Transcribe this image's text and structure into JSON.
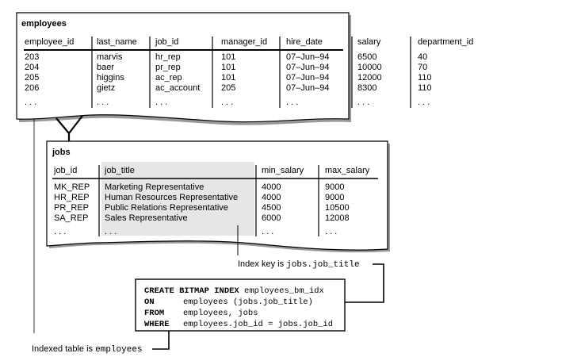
{
  "employees": {
    "title": "employees",
    "columns": [
      "employee_id",
      "last_name",
      "job_id",
      "manager_id",
      "hire_date",
      "salary",
      "department_id"
    ],
    "rows": [
      [
        "203",
        "marvis",
        "hr_rep",
        "101",
        "07–Jun–94",
        "6500",
        "40"
      ],
      [
        "204",
        "baer",
        "pr_rep",
        "101",
        "07–Jun–94",
        "10000",
        "70"
      ],
      [
        "205",
        "higgins",
        "ac_rep",
        "101",
        "07–Jun–94",
        "12000",
        "110"
      ],
      [
        "206",
        "gietz",
        "ac_account",
        "205",
        "07–Jun–94",
        "8300",
        "110"
      ],
      [
        ". . .",
        ". . .",
        ". . .",
        ". . .",
        ". . .",
        ". . .",
        ". . ."
      ]
    ]
  },
  "jobs": {
    "title": "jobs",
    "columns": [
      "job_id",
      "job_title",
      "min_salary",
      "max_salary"
    ],
    "rows": [
      [
        "MK_REP",
        "Marketing Representative",
        "4000",
        "9000"
      ],
      [
        "HR_REP",
        "Human Resources Representative",
        "4000",
        "9000"
      ],
      [
        "PR_REP",
        "Public Relations Representative",
        "4500",
        "10500"
      ],
      [
        "SA_REP",
        "Sales Representative",
        "6000",
        "12008"
      ],
      [
        ". . .",
        ". . .",
        ". . .",
        ". . ."
      ]
    ],
    "highlight_color": "#e6e6e6"
  },
  "sql": {
    "keywords": [
      "CREATE BITMAP INDEX",
      "ON",
      "FROM",
      "WHERE"
    ],
    "line1_rest": "employees_bm_idx",
    "line2": "employees (jobs.job_title)",
    "line3": "employees, jobs",
    "line4": "employees.job_id = jobs.job_id"
  },
  "annotations": {
    "index_key_prefix": "Index key is ",
    "index_key_code": "jobs.job_title",
    "indexed_table_prefix": "Indexed table is ",
    "indexed_table_code": "employees"
  }
}
